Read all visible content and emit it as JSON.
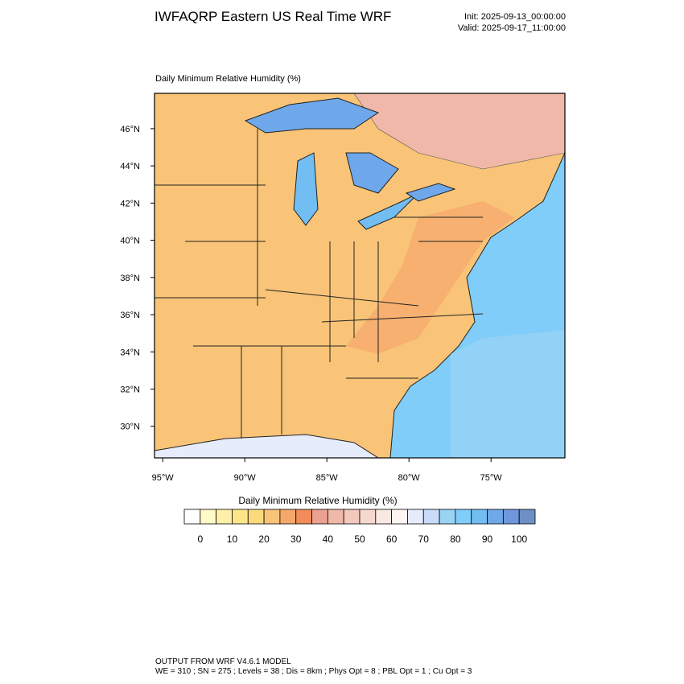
{
  "header": {
    "title": "IWFAQRP Eastern US Real Time WRF",
    "init": "Init: 2025-09-13_00:00:00",
    "valid": "Valid: 2025-09-17_11:00:00"
  },
  "map": {
    "subtitle": "Daily Minimum Relative Humidity   (%)",
    "xlim": [
      -95.5,
      -70.5
    ],
    "ylim": [
      28.3,
      47.9
    ],
    "xticks": [
      {
        "value": -95,
        "label": "95°W"
      },
      {
        "value": -90,
        "label": "90°W"
      },
      {
        "value": -85,
        "label": "85°W"
      },
      {
        "value": -80,
        "label": "80°W"
      },
      {
        "value": -75,
        "label": "75°W"
      }
    ],
    "yticks": [
      {
        "value": 30,
        "label": "30°N"
      },
      {
        "value": 32,
        "label": "32°N"
      },
      {
        "value": 34,
        "label": "34°N"
      },
      {
        "value": 36,
        "label": "36°N"
      },
      {
        "value": 38,
        "label": "38°N"
      },
      {
        "value": 40,
        "label": "40°N"
      },
      {
        "value": 42,
        "label": "42°N"
      },
      {
        "value": 44,
        "label": "44°N"
      },
      {
        "value": 46,
        "label": "46°N"
      }
    ]
  },
  "colorbar": {
    "title": "Daily Minimum Relative Humidity  (%)",
    "lim": [
      -5,
      105
    ],
    "colors": [
      "#ffffff",
      "#fffbc8",
      "#fff0a8",
      "#fde68a",
      "#fcd97a",
      "#f9c478",
      "#f6a86b",
      "#f28c5a",
      "#eca090",
      "#f0b8a8",
      "#f3c8bd",
      "#f6d8cf",
      "#fae8e2",
      "#fdf5f2",
      "#e6ecfb",
      "#c8dcfa",
      "#99d4f5",
      "#7fcdf8",
      "#72bdf2",
      "#6ea8ea",
      "#6f97dc",
      "#6e8fc6"
    ],
    "ticks": [
      0,
      10,
      20,
      30,
      40,
      50,
      60,
      70,
      80,
      90,
      100
    ]
  },
  "footer": {
    "line1": "OUTPUT FROM WRF V4.6.1 MODEL",
    "line2": "WE = 310 ; SN = 275 ; Levels = 38 ; Dis = 8km ; Phys Opt = 8 ; PBL Opt = 1 ; Cu Opt = 3"
  }
}
